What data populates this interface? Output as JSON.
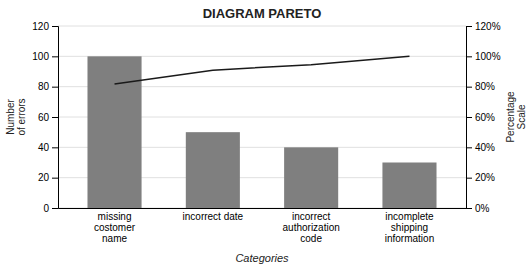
{
  "chart_data": {
    "type": "bar",
    "title": "DIAGRAM PARETO",
    "categories": [
      "missing\ncostomer\nname",
      "incorrect date",
      "incorrect\nauthorization\ncode",
      "incomplete\nshipping\ninformation"
    ],
    "xlabel": "Categories",
    "ylabel": "Number\nof errors",
    "y2label": "Percentage\nScale",
    "series": [
      {
        "type": "bar",
        "color": "#7f7f7f",
        "values": [
          100,
          50,
          40,
          30
        ]
      },
      {
        "type": "line",
        "axis": "y2",
        "color": "#1a1a1a",
        "values": [
          0.818,
          0.909,
          0.945,
          1.0
        ]
      }
    ],
    "ylim": [
      0,
      120
    ],
    "yticks": [
      0,
      20,
      40,
      60,
      80,
      100,
      120
    ],
    "y2lim": [
      0.0,
      1.2
    ],
    "y2ticks": [
      {
        "value": 0.0,
        "label": "0%"
      },
      {
        "value": 0.2,
        "label": "20%"
      },
      {
        "value": 0.4,
        "label": "40%"
      },
      {
        "value": 0.6,
        "label": "60%"
      },
      {
        "value": 0.8,
        "label": "80%"
      },
      {
        "value": 1.0,
        "label": "100%"
      },
      {
        "value": 1.2,
        "label": "120%"
      }
    ],
    "grid": true
  }
}
